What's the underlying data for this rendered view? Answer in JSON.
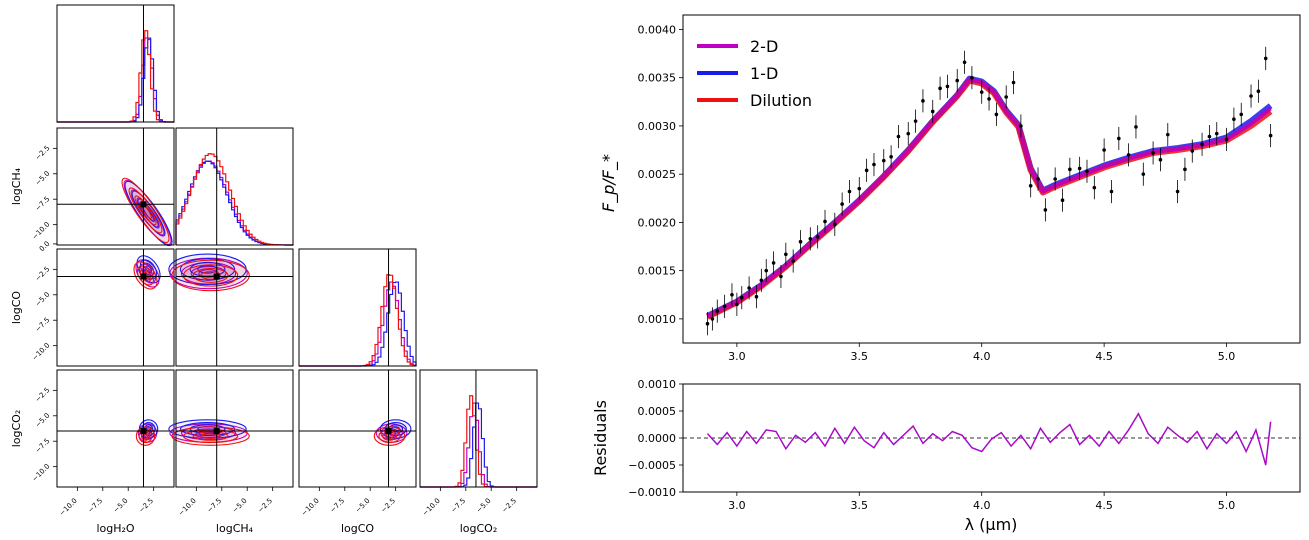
{
  "colors": {
    "twoD": "#c000c0",
    "oneD": "#1a1aee",
    "dilution": "#ee1111",
    "data": "#000000",
    "truth": "#000000"
  },
  "chart_data": [
    {
      "type": "corner",
      "parameters": [
        "logH₂O",
        "logCH₄",
        "logCO",
        "logCO₂"
      ],
      "ylabel_labels": [
        "logCH₄",
        "logCO",
        "logCO₂"
      ],
      "xlabel_labels": [
        "logH₂O",
        "logCH₄",
        "logCO",
        "logCO₂"
      ],
      "range": [
        -12.0,
        -0.5
      ],
      "ticks": [
        -10.0,
        -7.5,
        -5.0,
        -2.5
      ],
      "tick_labels": [
        "−10.0",
        "−7.5",
        "−5.0",
        "−2.5"
      ],
      "y_ticks_row1": [
        -2.5,
        -5.0,
        -7.5,
        -10.0
      ],
      "y_ticks_row2": [
        0.0,
        -2.5,
        -5.0,
        -7.5,
        -10.0
      ],
      "y_ticks_row3": [
        -2.5,
        -5.0,
        -7.5,
        -10.0
      ],
      "y_tick_labels_row1": [
        "−2.5",
        "−5.0",
        "−7.5",
        "−10.0"
      ],
      "y_tick_labels_row2": [
        "0.0",
        "−2.5",
        "−5.0",
        "−7.5",
        "−10.0"
      ],
      "y_tick_labels_row3": [
        "−2.5",
        "−5.0",
        "−7.5",
        "−10.0"
      ],
      "truth": [
        -3.5,
        -8.0,
        -3.2,
        -6.5
      ],
      "posteriors": [
        {
          "name": "2-D",
          "mean": [
            -3.1,
            -8.8,
            -2.9,
            -6.7
          ],
          "sd": [
            0.45,
            1.9,
            0.75,
            0.45
          ]
        },
        {
          "name": "1-D",
          "mean": [
            -3.0,
            -8.9,
            -2.5,
            -6.3
          ],
          "sd": [
            0.45,
            1.9,
            0.75,
            0.45
          ]
        },
        {
          "name": "Dilution",
          "mean": [
            -3.3,
            -8.6,
            -3.1,
            -7.0
          ],
          "sd": [
            0.45,
            1.9,
            0.75,
            0.45
          ]
        }
      ]
    },
    {
      "type": "line",
      "ylabel": "F_p/F_*",
      "xlim": [
        2.78,
        5.3
      ],
      "ylim": [
        0.00075,
        0.00415
      ],
      "x_ticks": [
        3.0,
        3.5,
        4.0,
        4.5,
        5.0
      ],
      "x_tick_labels": [
        "3.0",
        "3.5",
        "4.0",
        "4.5",
        "5.0"
      ],
      "y_ticks": [
        0.001,
        0.0015,
        0.002,
        0.0025,
        0.003,
        0.0035,
        0.004
      ],
      "y_tick_labels": [
        "0.0010",
        "0.0015",
        "0.0020",
        "0.0025",
        "0.0030",
        "0.0035",
        "0.0040"
      ],
      "legend": [
        "2-D",
        "1-D",
        "Dilution"
      ],
      "legend_position": "upper-left",
      "model_x": [
        2.88,
        3.0,
        3.1,
        3.2,
        3.3,
        3.4,
        3.5,
        3.6,
        3.7,
        3.8,
        3.9,
        3.95,
        4.0,
        4.05,
        4.1,
        4.15,
        4.2,
        4.25,
        4.3,
        4.4,
        4.5,
        4.6,
        4.7,
        4.8,
        4.9,
        5.0,
        5.1,
        5.18
      ],
      "model_2d": [
        0.00103,
        0.00118,
        0.00135,
        0.00155,
        0.00178,
        0.002,
        0.00223,
        0.00248,
        0.00275,
        0.00305,
        0.00332,
        0.00348,
        0.00345,
        0.00335,
        0.00315,
        0.003,
        0.00255,
        0.00232,
        0.00238,
        0.00248,
        0.00258,
        0.00266,
        0.00273,
        0.00276,
        0.0028,
        0.00286,
        0.00302,
        0.00318
      ],
      "model_1d": [
        0.00103,
        0.00118,
        0.00135,
        0.00155,
        0.00178,
        0.002,
        0.00223,
        0.00248,
        0.00275,
        0.00305,
        0.00332,
        0.00349,
        0.00346,
        0.00336,
        0.00316,
        0.00301,
        0.00256,
        0.00233,
        0.00239,
        0.00249,
        0.00259,
        0.00267,
        0.00274,
        0.00277,
        0.00281,
        0.00288,
        0.00305,
        0.00321
      ],
      "model_dil": [
        0.00102,
        0.00117,
        0.00134,
        0.00154,
        0.00177,
        0.00199,
        0.00222,
        0.00247,
        0.00274,
        0.00304,
        0.00331,
        0.00347,
        0.00344,
        0.00334,
        0.00314,
        0.00299,
        0.00254,
        0.00231,
        0.00237,
        0.00247,
        0.00257,
        0.00265,
        0.00272,
        0.00275,
        0.00279,
        0.00285,
        0.003,
        0.00315
      ],
      "data_x": [
        2.88,
        2.9,
        2.92,
        2.95,
        2.98,
        3.0,
        3.02,
        3.05,
        3.08,
        3.1,
        3.12,
        3.15,
        3.18,
        3.2,
        3.23,
        3.26,
        3.3,
        3.33,
        3.36,
        3.4,
        3.43,
        3.46,
        3.5,
        3.53,
        3.56,
        3.6,
        3.63,
        3.66,
        3.7,
        3.73,
        3.76,
        3.8,
        3.83,
        3.86,
        3.9,
        3.93,
        3.96,
        4.0,
        4.03,
        4.06,
        4.1,
        4.13,
        4.16,
        4.2,
        4.23,
        4.26,
        4.3,
        4.33,
        4.36,
        4.4,
        4.43,
        4.46,
        4.5,
        4.53,
        4.56,
        4.6,
        4.63,
        4.66,
        4.7,
        4.73,
        4.76,
        4.8,
        4.83,
        4.86,
        4.9,
        4.93,
        4.96,
        5.0,
        5.03,
        5.06,
        5.1,
        5.13,
        5.16,
        5.18
      ],
      "data_y": [
        0.00095,
        0.001,
        0.00108,
        0.00113,
        0.00125,
        0.00115,
        0.00122,
        0.00132,
        0.00123,
        0.0014,
        0.0015,
        0.00158,
        0.00144,
        0.00167,
        0.0016,
        0.0018,
        0.00183,
        0.00185,
        0.00201,
        0.00198,
        0.00219,
        0.00232,
        0.00235,
        0.00254,
        0.0026,
        0.00264,
        0.00268,
        0.00289,
        0.00292,
        0.00305,
        0.00326,
        0.00315,
        0.00339,
        0.00341,
        0.00347,
        0.00366,
        0.0035,
        0.00335,
        0.00328,
        0.00312,
        0.0033,
        0.00345,
        0.003,
        0.00238,
        0.00245,
        0.00213,
        0.00245,
        0.00223,
        0.00255,
        0.00256,
        0.00253,
        0.00236,
        0.00275,
        0.00232,
        0.00287,
        0.0027,
        0.00299,
        0.0025,
        0.00272,
        0.00265,
        0.00291,
        0.00232,
        0.00255,
        0.00274,
        0.00281,
        0.00289,
        0.00292,
        0.00286,
        0.00307,
        0.00312,
        0.00331,
        0.00336,
        0.0037,
        0.0029
      ],
      "data_err": 0.00012
    },
    {
      "type": "line",
      "xlabel": "λ (μm)",
      "ylabel": "Residuals",
      "xlim": [
        2.78,
        5.3
      ],
      "ylim": [
        -0.001,
        0.001
      ],
      "x_ticks": [
        3.0,
        3.5,
        4.0,
        4.5,
        5.0
      ],
      "x_tick_labels": [
        "3.0",
        "3.5",
        "4.0",
        "4.5",
        "5.0"
      ],
      "y_ticks": [
        -0.001,
        -0.0005,
        0.0,
        0.0005,
        0.001
      ],
      "y_tick_labels": [
        "−0.0010",
        "−0.0005",
        "0.0000",
        "0.0005",
        "0.0010"
      ],
      "zero_line": 0.0,
      "residual_x": [
        2.88,
        2.92,
        2.96,
        3.0,
        3.04,
        3.08,
        3.12,
        3.16,
        3.2,
        3.24,
        3.28,
        3.32,
        3.36,
        3.4,
        3.44,
        3.48,
        3.52,
        3.56,
        3.6,
        3.64,
        3.68,
        3.72,
        3.76,
        3.8,
        3.84,
        3.88,
        3.92,
        3.96,
        4.0,
        4.04,
        4.08,
        4.12,
        4.16,
        4.2,
        4.24,
        4.28,
        4.32,
        4.36,
        4.4,
        4.44,
        4.48,
        4.52,
        4.56,
        4.6,
        4.64,
        4.68,
        4.72,
        4.76,
        4.8,
        4.84,
        4.88,
        4.92,
        4.96,
        5.0,
        5.04,
        5.08,
        5.12,
        5.16,
        5.18
      ],
      "residual_y": [
        8e-05,
        -0.00012,
        0.0001,
        -0.00015,
        0.00012,
        -0.0001,
        0.00015,
        0.00012,
        -0.0002,
        5e-05,
        -8e-05,
        0.0001,
        -0.00015,
        0.00018,
        -0.0001,
        0.0002,
        -5e-05,
        -0.00018,
        0.0001,
        -0.00012,
        5e-05,
        0.00022,
        -0.0001,
        8e-05,
        -5e-05,
        0.00012,
        5e-05,
        -0.00018,
        -0.00025,
        -2e-05,
        0.0001,
        -0.00015,
        5e-05,
        -0.0002,
        0.00018,
        -8e-05,
        0.0001,
        0.00025,
        -0.00012,
        5e-05,
        -0.00015,
        0.00012,
        -0.0001,
        0.00015,
        0.00045,
        8e-05,
        -0.0001,
        0.0002,
        5e-05,
        -8e-05,
        0.00012,
        -0.0002,
        8e-05,
        -0.0001,
        0.00012,
        -0.00025,
        0.00015,
        -0.0005,
        0.0003
      ]
    }
  ]
}
